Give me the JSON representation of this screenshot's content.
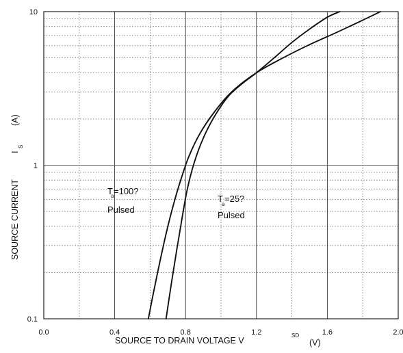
{
  "chart_data": {
    "type": "line",
    "title": "",
    "xlabel": {
      "text": "SOURCE TO DRAIN VOLTAGE   V",
      "subscript": "SD",
      "unit": "(V)"
    },
    "ylabel": {
      "text": "SOURCE CURRENT",
      "symbol": "I",
      "subscript": "S",
      "unit": "(A)"
    },
    "xlim": [
      0,
      2.0
    ],
    "ylim": [
      0.1,
      10
    ],
    "yscale": "log",
    "grid": true,
    "x_ticks": [
      "0.0",
      "0.4",
      "0.8",
      "1.2",
      "1.6",
      "2.0"
    ],
    "y_ticks": [
      {
        "value": 0.1,
        "label": "0.1"
      },
      {
        "value": 1,
        "label": "1"
      },
      {
        "value": 10,
        "label": "10"
      }
    ],
    "series": [
      {
        "name": "",
        "condition": "Ta=100?",
        "x": [
          0.59,
          0.62,
          0.66,
          0.7,
          0.74,
          0.78,
          0.82,
          0.88,
          0.96,
          1.06,
          1.2,
          1.35,
          1.5,
          1.65,
          1.8,
          1.9
        ],
        "y": [
          0.1,
          0.15,
          0.25,
          0.4,
          0.6,
          0.85,
          1.15,
          1.6,
          2.2,
          3.0,
          4.0,
          5.0,
          6.1,
          7.3,
          8.8,
          10.0
        ]
      },
      {
        "name": "",
        "condition": "Ta=25?",
        "x": [
          0.69,
          0.72,
          0.75,
          0.78,
          0.81,
          0.85,
          0.9,
          0.96,
          1.04,
          1.12,
          1.2,
          1.3,
          1.4,
          1.5,
          1.6,
          1.67
        ],
        "y": [
          0.1,
          0.17,
          0.28,
          0.45,
          0.7,
          1.05,
          1.5,
          2.05,
          2.8,
          3.4,
          4.0,
          5.0,
          6.3,
          7.7,
          9.2,
          10.0
        ]
      }
    ],
    "annotations": [
      {
        "id": "ta100",
        "prefix": "T",
        "subscript": "a",
        "value": "=100?",
        "note": "Pulsed"
      },
      {
        "id": "ta25",
        "prefix": "T",
        "subscript": "a",
        "value": "=25?",
        "note": "Pulsed"
      }
    ]
  }
}
